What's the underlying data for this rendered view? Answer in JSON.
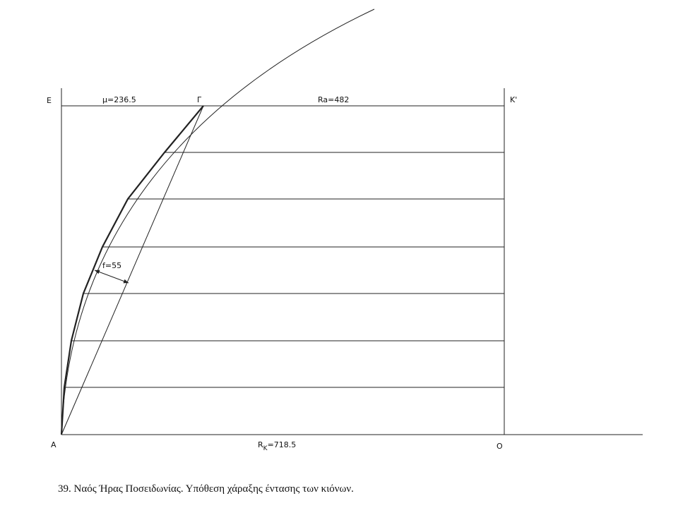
{
  "points": {
    "E": "E",
    "Gamma": "Γ",
    "K_prime": "K'",
    "A": "A",
    "O": "O"
  },
  "dimensions": {
    "mu": "μ=236.5",
    "Ra": "Ra=482",
    "f": "f=55",
    "Rk": {
      "symbol": "R",
      "subscript": "K",
      "text": "=718.5"
    }
  },
  "caption": "39.  Ναός Ήρας Ποσειδωνίας. Υπόθεση χάραξης έντασης των κιόνων."
}
